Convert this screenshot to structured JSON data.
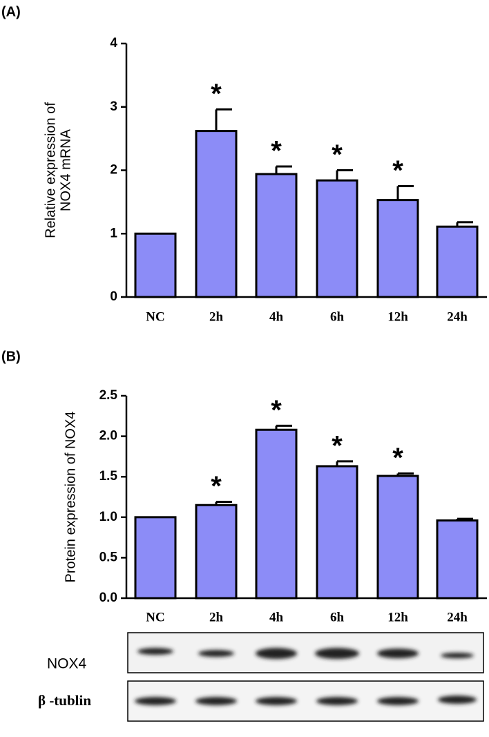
{
  "chart_data": [
    {
      "type": "bar",
      "panel": "(A)",
      "ylabel": [
        "Relative expression of",
        "NOX4 mRNA"
      ],
      "categories": [
        "NC",
        "2h",
        "4h",
        "6h",
        "12h",
        "24h"
      ],
      "values": [
        1.0,
        2.62,
        1.94,
        1.84,
        1.53,
        1.11
      ],
      "errors": [
        0,
        0.34,
        0.12,
        0.16,
        0.22,
        0.07
      ],
      "significance": [
        null,
        "*",
        "*",
        "*",
        "*",
        null
      ],
      "color": "#8c8cf7",
      "ylim": [
        0,
        4
      ],
      "yticks": [
        0,
        1,
        2,
        3,
        4
      ]
    },
    {
      "type": "bar",
      "panel": "(B)",
      "ylabel": [
        "Protein expression of NOX4"
      ],
      "categories": [
        "NC",
        "2h",
        "4h",
        "6h",
        "12h",
        "24h"
      ],
      "values": [
        1.0,
        1.15,
        2.08,
        1.63,
        1.51,
        0.96
      ],
      "errors": [
        0,
        0.04,
        0.05,
        0.06,
        0.03,
        0.02
      ],
      "significance": [
        null,
        "*",
        "*",
        "*",
        "*",
        null
      ],
      "color": "#8c8cf7",
      "ylim": [
        0,
        2.5
      ],
      "yticks": [
        {
          "value": 0,
          "label": "0.0"
        },
        {
          "value": 0.5,
          "label": "0.5"
        },
        {
          "value": 1,
          "label": "1.0"
        },
        {
          "value": 1.5,
          "label": "1.5"
        },
        {
          "value": 2,
          "label": "2.0"
        },
        {
          "value": 2.5,
          "label": "2.5"
        }
      ]
    }
  ],
  "blot": {
    "labels": [
      "NOX4",
      "β -tublin"
    ]
  }
}
